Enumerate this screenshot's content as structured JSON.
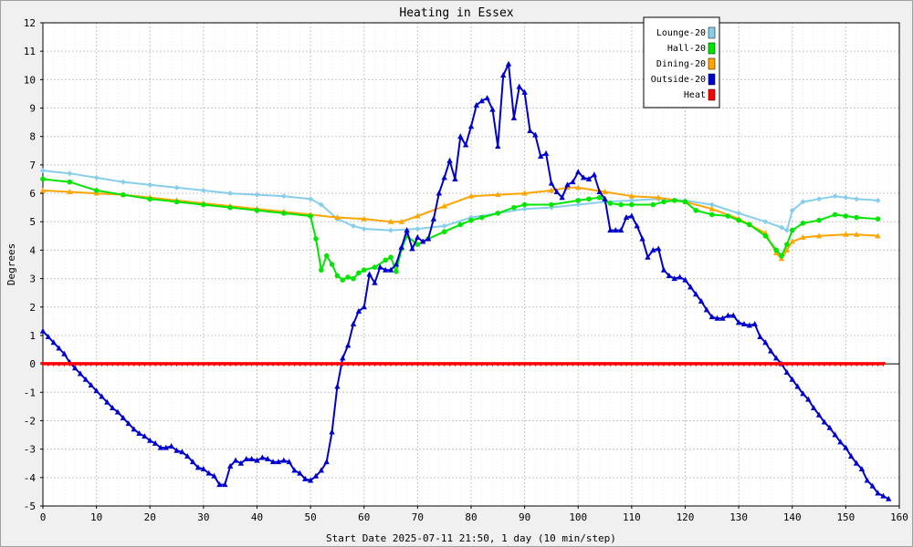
{
  "chart_data": {
    "type": "line",
    "title": "Heating in Essex",
    "xlabel": "Start Date 2025-07-11 21:50, 1 day (10 min/step)",
    "ylabel": "Degrees",
    "xlim": [
      0,
      160
    ],
    "ylim": [
      -5,
      12
    ],
    "x_ticks": [
      0,
      10,
      20,
      30,
      40,
      50,
      60,
      70,
      80,
      90,
      100,
      110,
      120,
      130,
      140,
      150,
      160
    ],
    "y_ticks": [
      -5,
      -4,
      -3,
      -2,
      -1,
      0,
      1,
      2,
      3,
      4,
      5,
      6,
      7,
      8,
      9,
      10,
      11,
      12
    ],
    "grid": true,
    "legend_position": "top-right",
    "series": [
      {
        "name": "Lounge-20",
        "color": "#87ceeb",
        "marker": "diamond",
        "points": [
          [
            0,
            6.8
          ],
          [
            5,
            6.7
          ],
          [
            10,
            6.55
          ],
          [
            15,
            6.4
          ],
          [
            20,
            6.3
          ],
          [
            25,
            6.2
          ],
          [
            30,
            6.1
          ],
          [
            35,
            6.0
          ],
          [
            40,
            5.95
          ],
          [
            45,
            5.9
          ],
          [
            50,
            5.8
          ],
          [
            52,
            5.6
          ],
          [
            55,
            5.1
          ],
          [
            58,
            4.85
          ],
          [
            60,
            4.75
          ],
          [
            65,
            4.7
          ],
          [
            70,
            4.75
          ],
          [
            75,
            4.85
          ],
          [
            80,
            5.15
          ],
          [
            85,
            5.3
          ],
          [
            90,
            5.45
          ],
          [
            95,
            5.5
          ],
          [
            100,
            5.6
          ],
          [
            105,
            5.7
          ],
          [
            110,
            5.75
          ],
          [
            115,
            5.8
          ],
          [
            120,
            5.75
          ],
          [
            125,
            5.6
          ],
          [
            130,
            5.3
          ],
          [
            135,
            5.0
          ],
          [
            138,
            4.8
          ],
          [
            139,
            4.7
          ],
          [
            140,
            5.4
          ],
          [
            142,
            5.7
          ],
          [
            145,
            5.8
          ],
          [
            148,
            5.9
          ],
          [
            150,
            5.85
          ],
          [
            152,
            5.8
          ],
          [
            156,
            5.75
          ]
        ]
      },
      {
        "name": "Hall-20",
        "color": "#00e600",
        "marker": "circle",
        "points": [
          [
            0,
            6.5
          ],
          [
            5,
            6.4
          ],
          [
            10,
            6.1
          ],
          [
            15,
            5.95
          ],
          [
            20,
            5.8
          ],
          [
            25,
            5.7
          ],
          [
            30,
            5.6
          ],
          [
            35,
            5.5
          ],
          [
            40,
            5.4
          ],
          [
            45,
            5.3
          ],
          [
            50,
            5.2
          ],
          [
            51,
            4.4
          ],
          [
            52,
            3.3
          ],
          [
            53,
            3.8
          ],
          [
            54,
            3.5
          ],
          [
            55,
            3.1
          ],
          [
            56,
            2.95
          ],
          [
            57,
            3.05
          ],
          [
            58,
            3.0
          ],
          [
            59,
            3.2
          ],
          [
            60,
            3.3
          ],
          [
            62,
            3.4
          ],
          [
            64,
            3.65
          ],
          [
            65,
            3.75
          ],
          [
            66,
            3.25
          ],
          [
            67,
            4.05
          ],
          [
            68,
            4.5
          ],
          [
            70,
            4.2
          ],
          [
            72,
            4.4
          ],
          [
            75,
            4.65
          ],
          [
            78,
            4.9
          ],
          [
            80,
            5.05
          ],
          [
            82,
            5.15
          ],
          [
            85,
            5.3
          ],
          [
            88,
            5.5
          ],
          [
            90,
            5.6
          ],
          [
            95,
            5.6
          ],
          [
            100,
            5.75
          ],
          [
            102,
            5.8
          ],
          [
            104,
            5.85
          ],
          [
            106,
            5.65
          ],
          [
            108,
            5.6
          ],
          [
            110,
            5.6
          ],
          [
            114,
            5.6
          ],
          [
            116,
            5.7
          ],
          [
            118,
            5.75
          ],
          [
            120,
            5.7
          ],
          [
            122,
            5.4
          ],
          [
            125,
            5.25
          ],
          [
            128,
            5.2
          ],
          [
            130,
            5.05
          ],
          [
            132,
            4.9
          ],
          [
            135,
            4.5
          ],
          [
            137,
            4.0
          ],
          [
            138,
            3.8
          ],
          [
            139,
            4.2
          ],
          [
            140,
            4.7
          ],
          [
            142,
            4.95
          ],
          [
            145,
            5.05
          ],
          [
            148,
            5.25
          ],
          [
            150,
            5.2
          ],
          [
            152,
            5.15
          ],
          [
            156,
            5.1
          ]
        ]
      },
      {
        "name": "Dining-20",
        "color": "#ffa500",
        "marker": "triangle",
        "points": [
          [
            0,
            6.1
          ],
          [
            5,
            6.05
          ],
          [
            10,
            6.0
          ],
          [
            15,
            5.95
          ],
          [
            20,
            5.85
          ],
          [
            25,
            5.75
          ],
          [
            30,
            5.65
          ],
          [
            35,
            5.55
          ],
          [
            40,
            5.45
          ],
          [
            45,
            5.35
          ],
          [
            50,
            5.25
          ],
          [
            55,
            5.15
          ],
          [
            60,
            5.1
          ],
          [
            65,
            5.0
          ],
          [
            67,
            5.0
          ],
          [
            70,
            5.2
          ],
          [
            75,
            5.55
          ],
          [
            80,
            5.9
          ],
          [
            85,
            5.95
          ],
          [
            90,
            6.0
          ],
          [
            95,
            6.1
          ],
          [
            98,
            6.2
          ],
          [
            100,
            6.2
          ],
          [
            105,
            6.05
          ],
          [
            110,
            5.9
          ],
          [
            115,
            5.85
          ],
          [
            120,
            5.7
          ],
          [
            125,
            5.45
          ],
          [
            130,
            5.1
          ],
          [
            135,
            4.6
          ],
          [
            137,
            3.9
          ],
          [
            138,
            3.7
          ],
          [
            139,
            4.0
          ],
          [
            140,
            4.3
          ],
          [
            142,
            4.45
          ],
          [
            145,
            4.5
          ],
          [
            150,
            4.55
          ],
          [
            152,
            4.55
          ],
          [
            156,
            4.5
          ]
        ]
      },
      {
        "name": "Outside-20",
        "color": "#0000cd",
        "marker": "triangle",
        "points": [
          [
            0,
            1.15
          ],
          [
            1,
            0.95
          ],
          [
            2,
            0.75
          ],
          [
            3,
            0.55
          ],
          [
            4,
            0.35
          ],
          [
            5,
            0.05
          ],
          [
            6,
            -0.15
          ],
          [
            7,
            -0.35
          ],
          [
            8,
            -0.55
          ],
          [
            9,
            -0.75
          ],
          [
            10,
            -0.95
          ],
          [
            11,
            -1.15
          ],
          [
            12,
            -1.35
          ],
          [
            13,
            -1.55
          ],
          [
            14,
            -1.7
          ],
          [
            15,
            -1.9
          ],
          [
            16,
            -2.1
          ],
          [
            17,
            -2.3
          ],
          [
            18,
            -2.45
          ],
          [
            19,
            -2.55
          ],
          [
            20,
            -2.7
          ],
          [
            21,
            -2.8
          ],
          [
            22,
            -2.95
          ],
          [
            23,
            -2.95
          ],
          [
            24,
            -2.9
          ],
          [
            25,
            -3.05
          ],
          [
            26,
            -3.1
          ],
          [
            27,
            -3.25
          ],
          [
            28,
            -3.45
          ],
          [
            29,
            -3.65
          ],
          [
            30,
            -3.7
          ],
          [
            31,
            -3.85
          ],
          [
            32,
            -3.95
          ],
          [
            33,
            -4.25
          ],
          [
            34,
            -4.25
          ],
          [
            35,
            -3.6
          ],
          [
            36,
            -3.4
          ],
          [
            37,
            -3.5
          ],
          [
            38,
            -3.35
          ],
          [
            39,
            -3.35
          ],
          [
            40,
            -3.4
          ],
          [
            41,
            -3.3
          ],
          [
            42,
            -3.35
          ],
          [
            43,
            -3.45
          ],
          [
            44,
            -3.45
          ],
          [
            45,
            -3.4
          ],
          [
            46,
            -3.45
          ],
          [
            47,
            -3.75
          ],
          [
            48,
            -3.85
          ],
          [
            49,
            -4.05
          ],
          [
            50,
            -4.1
          ],
          [
            51,
            -3.95
          ],
          [
            52,
            -3.75
          ],
          [
            53,
            -3.45
          ],
          [
            54,
            -2.4
          ],
          [
            55,
            -0.8
          ],
          [
            56,
            0.2
          ],
          [
            57,
            0.65
          ],
          [
            58,
            1.4
          ],
          [
            59,
            1.85
          ],
          [
            60,
            2.0
          ],
          [
            61,
            3.15
          ],
          [
            62,
            2.85
          ],
          [
            63,
            3.4
          ],
          [
            64,
            3.3
          ],
          [
            65,
            3.3
          ],
          [
            66,
            3.5
          ],
          [
            67,
            4.1
          ],
          [
            68,
            4.7
          ],
          [
            69,
            4.05
          ],
          [
            70,
            4.45
          ],
          [
            71,
            4.3
          ],
          [
            72,
            4.4
          ],
          [
            73,
            5.1
          ],
          [
            74,
            6.0
          ],
          [
            75,
            6.55
          ],
          [
            76,
            7.15
          ],
          [
            77,
            6.5
          ],
          [
            78,
            8.0
          ],
          [
            79,
            7.7
          ],
          [
            80,
            8.35
          ],
          [
            81,
            9.1
          ],
          [
            82,
            9.25
          ],
          [
            83,
            9.35
          ],
          [
            84,
            8.95
          ],
          [
            85,
            7.65
          ],
          [
            86,
            10.15
          ],
          [
            87,
            10.55
          ],
          [
            88,
            8.65
          ],
          [
            89,
            9.75
          ],
          [
            90,
            9.55
          ],
          [
            91,
            8.2
          ],
          [
            92,
            8.05
          ],
          [
            93,
            7.3
          ],
          [
            94,
            7.4
          ],
          [
            95,
            6.35
          ],
          [
            96,
            6.05
          ],
          [
            97,
            5.85
          ],
          [
            98,
            6.3
          ],
          [
            99,
            6.4
          ],
          [
            100,
            6.75
          ],
          [
            101,
            6.55
          ],
          [
            102,
            6.5
          ],
          [
            103,
            6.65
          ],
          [
            104,
            6.05
          ],
          [
            105,
            5.8
          ],
          [
            106,
            4.7
          ],
          [
            107,
            4.7
          ],
          [
            108,
            4.7
          ],
          [
            109,
            5.15
          ],
          [
            110,
            5.2
          ],
          [
            111,
            4.85
          ],
          [
            112,
            4.4
          ],
          [
            113,
            3.75
          ],
          [
            114,
            4.0
          ],
          [
            115,
            4.05
          ],
          [
            116,
            3.3
          ],
          [
            117,
            3.1
          ],
          [
            118,
            3.0
          ],
          [
            119,
            3.05
          ],
          [
            120,
            2.95
          ],
          [
            121,
            2.7
          ],
          [
            122,
            2.45
          ],
          [
            123,
            2.2
          ],
          [
            124,
            1.9
          ],
          [
            125,
            1.65
          ],
          [
            126,
            1.6
          ],
          [
            127,
            1.6
          ],
          [
            128,
            1.7
          ],
          [
            129,
            1.7
          ],
          [
            130,
            1.45
          ],
          [
            131,
            1.4
          ],
          [
            132,
            1.35
          ],
          [
            133,
            1.4
          ],
          [
            134,
            0.95
          ],
          [
            135,
            0.75
          ],
          [
            136,
            0.45
          ],
          [
            137,
            0.2
          ],
          [
            138,
            0.0
          ],
          [
            139,
            -0.3
          ],
          [
            140,
            -0.55
          ],
          [
            141,
            -0.8
          ],
          [
            142,
            -1.05
          ],
          [
            143,
            -1.25
          ],
          [
            144,
            -1.55
          ],
          [
            145,
            -1.8
          ],
          [
            146,
            -2.05
          ],
          [
            147,
            -2.25
          ],
          [
            148,
            -2.5
          ],
          [
            149,
            -2.75
          ],
          [
            150,
            -2.95
          ],
          [
            151,
            -3.25
          ],
          [
            152,
            -3.5
          ],
          [
            153,
            -3.7
          ],
          [
            154,
            -4.1
          ],
          [
            155,
            -4.3
          ],
          [
            156,
            -4.55
          ],
          [
            157,
            -4.65
          ],
          [
            158,
            -4.75
          ]
        ]
      },
      {
        "name": "Heat",
        "color": "#ff0000",
        "marker": "triangle-down",
        "points": [
          [
            0,
            0
          ],
          [
            157,
            0
          ]
        ]
      }
    ]
  }
}
